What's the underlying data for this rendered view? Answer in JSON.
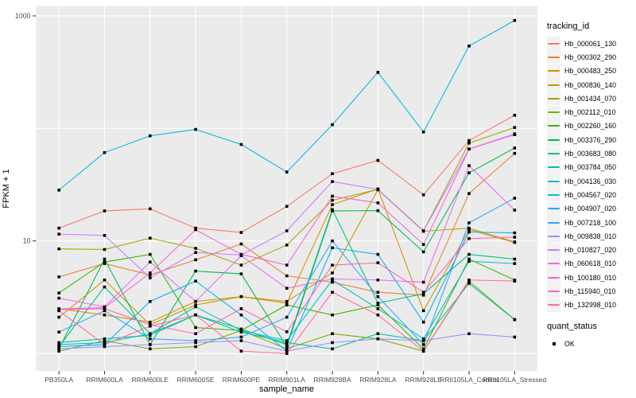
{
  "chart_data": {
    "type": "line",
    "title": "",
    "xlabel": "sample_name",
    "ylabel": "FPKM + 1",
    "y_scale": "log10",
    "ylim": [
      0.7,
      1225
    ],
    "y_tick_labels": [
      "10",
      "1000"
    ],
    "y_tick_values": [
      10,
      1000
    ],
    "gridline_values": [
      1,
      10,
      100,
      1000
    ],
    "grid": true,
    "legend_position": "right",
    "panel_bg": "#EBEBEB",
    "gridline_color": "#FFFFFF",
    "axis_text_color": "#4D4D4D",
    "tick_color": "#333333",
    "marker_color": "#000000",
    "categories": [
      "PB350LA",
      "RRIM600LA",
      "RRIM600LE",
      "RRIM600SE",
      "RRIM600PE",
      "RRIM901LA",
      "RRIM928BA",
      "RRIM928LA",
      "RRIM928LE",
      "RRII105LA_Control",
      "RRII105LA_Stressed"
    ],
    "series": [
      {
        "name": "Hb_000061_130",
        "color": "#F8766D",
        "values": [
          13,
          18.5,
          19.3,
          13,
          11.9,
          20.3,
          39.6,
          52,
          25.7,
          78,
          131
        ]
      },
      {
        "name": "Hb_000302_290",
        "color": "#EA8331",
        "values": [
          4.8,
          6.3,
          5.0,
          6.8,
          9.4,
          4.9,
          4.3,
          3.5,
          3.3,
          26.4,
          60
        ]
      },
      {
        "name": "Hb_000483_250",
        "color": "#D89000",
        "values": [
          2.5,
          2.2,
          1.9,
          2.9,
          3.2,
          2.8,
          21,
          29,
          2.4,
          12.6,
          9.7
        ]
      },
      {
        "name": "Hb_000836_140",
        "color": "#C09B00",
        "values": [
          2.1,
          4.5,
          1.8,
          2.7,
          3.2,
          2.9,
          5.2,
          28.5,
          12.2,
          13,
          9.8
        ]
      },
      {
        "name": "Hb_001434_070",
        "color": "#A3A500",
        "values": [
          8.5,
          8.4,
          10.6,
          8.6,
          6.1,
          9.2,
          23,
          28.7,
          12.3,
          74,
          102
        ]
      },
      {
        "name": "Hb_002112_010",
        "color": "#7CAE00",
        "values": [
          1.05,
          1.3,
          1.1,
          1.15,
          1.6,
          1.1,
          1.5,
          1.35,
          1.05,
          4.4,
          2.0
        ]
      },
      {
        "name": "Hb_002260_160",
        "color": "#39B600",
        "values": [
          3.45,
          6.5,
          7.6,
          1.7,
          1.6,
          2.7,
          2.2,
          2.7,
          1.1,
          6.9,
          4.5
        ]
      },
      {
        "name": "Hb_003376_290",
        "color": "#00BB4E",
        "values": [
          1.1,
          6.9,
          1.2,
          5.4,
          5.1,
          1.15,
          18.5,
          18.6,
          8.0,
          40.3,
          67
        ]
      },
      {
        "name": "Hb_003683_080",
        "color": "#00BF7D",
        "values": [
          1.15,
          3.9,
          1.5,
          2.2,
          1.65,
          1.2,
          19,
          2.8,
          3.4,
          7.6,
          6.9
        ]
      },
      {
        "name": "Hb_003784_050",
        "color": "#00C1A3",
        "values": [
          1.25,
          1.35,
          1.45,
          2.2,
          1.55,
          1.25,
          1.1,
          1.5,
          1.3,
          4.2,
          2.0
        ]
      },
      {
        "name": "Hb_004136_030",
        "color": "#00BFC4",
        "values": [
          1.2,
          1.25,
          1.5,
          2.6,
          1.6,
          1.3,
          4.5,
          2.5,
          1.35,
          6.6,
          6.3
        ]
      },
      {
        "name": "Hb_004567_020",
        "color": "#00BAE0",
        "values": [
          28.3,
          61,
          86,
          98,
          72,
          41,
          108,
          315,
          93,
          540,
          910
        ]
      },
      {
        "name": "Hb_004907_020",
        "color": "#00B0F6",
        "values": [
          1.15,
          1.2,
          2.9,
          4.4,
          2.2,
          1.05,
          8.7,
          7.6,
          1.9,
          12.0,
          11.8
        ]
      },
      {
        "name": "Hb_007218_100",
        "color": "#35A2FF",
        "values": [
          1.55,
          2.4,
          1.35,
          1.3,
          1.4,
          2.1,
          10.0,
          3.2,
          1.2,
          14.5,
          24
        ]
      },
      {
        "name": "Hb_009838_010",
        "color": "#9590FF",
        "values": [
          1.1,
          1.15,
          1.2,
          1.25,
          1.3,
          1.05,
          1.25,
          1.35,
          1.3,
          1.5,
          1.4
        ]
      },
      {
        "name": "Hb_010827_020",
        "color": "#C77CFF",
        "values": [
          11.5,
          11.2,
          4.7,
          7.9,
          7.5,
          12.3,
          33.7,
          28.7,
          12.3,
          65.6,
          89.5
        ]
      },
      {
        "name": "Hb_060618_010",
        "color": "#E76BF3",
        "values": [
          3.1,
          2.6,
          6.5,
          2.9,
          7.4,
          3.8,
          4.6,
          4.5,
          4.3,
          46.7,
          18.8
        ]
      },
      {
        "name": "Hb_100180_010",
        "color": "#FA62DB",
        "values": [
          2.5,
          2.55,
          5.2,
          12.6,
          7.6,
          6.1,
          25,
          21.8,
          9.3,
          65.6,
          88
        ]
      },
      {
        "name": "Hb_115940_010",
        "color": "#FF62BC",
        "values": [
          2.45,
          2.5,
          1.8,
          1.5,
          2.5,
          1.56,
          6.1,
          6.4,
          3.5,
          10.5,
          10.8
        ]
      },
      {
        "name": "Hb_132998_010",
        "color": "#FF6A98",
        "values": [
          2.4,
          1.2,
          1.75,
          2.2,
          1.05,
          1.0,
          3.5,
          2.2,
          1.05,
          4.5,
          4.4
        ]
      }
    ]
  },
  "legend": {
    "tracking_title": "tracking_id",
    "quant_title": "quant_status",
    "quant_items": [
      {
        "label": "OK"
      }
    ]
  }
}
